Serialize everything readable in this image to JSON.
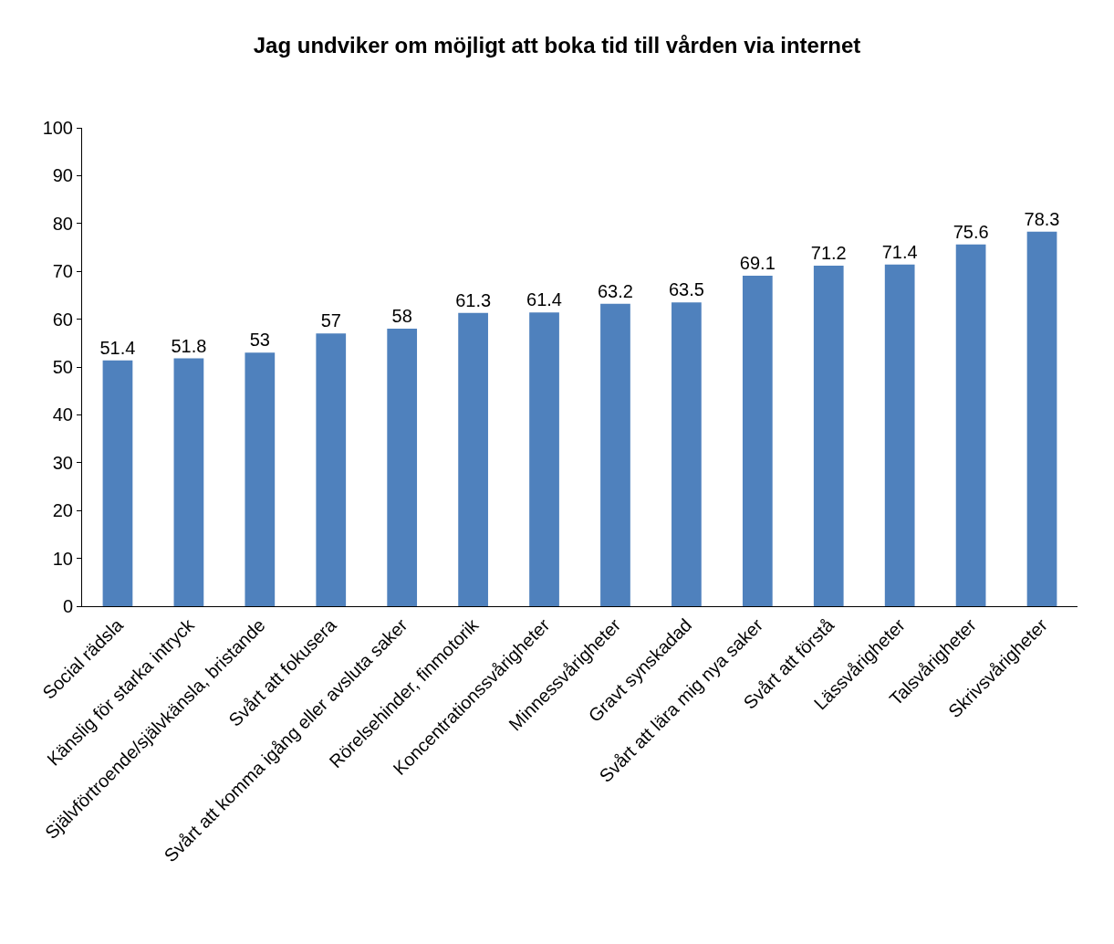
{
  "chart_data": {
    "type": "bar",
    "title": "Jag undviker om möjligt att boka tid till vården via internet",
    "categories": [
      "Social rädsla",
      "Känslig för starka intryck",
      "Självförtroende/självkänsla, bristande",
      "Svårt att fokusera",
      "Svårt att komma igång eller avsluta saker",
      "Rörelsehinder, finmotorik",
      "Koncentrationssvårigheter",
      "Minnessvårigheter",
      "Gravt synskadad",
      "Svårt att lära mig nya saker",
      "Svårt att förstå",
      "Lässvårigheter",
      "Talsvårigheter",
      "Skrivsvårigheter"
    ],
    "values": [
      51.4,
      51.8,
      53,
      57,
      58,
      61.3,
      61.4,
      63.2,
      63.5,
      69.1,
      71.2,
      71.4,
      75.6,
      78.3
    ],
    "color": "#4f81bd",
    "ylim": [
      0,
      100
    ],
    "yticks": [
      0,
      10,
      20,
      30,
      40,
      50,
      60,
      70,
      80,
      90,
      100
    ],
    "data_labels": true,
    "legend": false
  }
}
